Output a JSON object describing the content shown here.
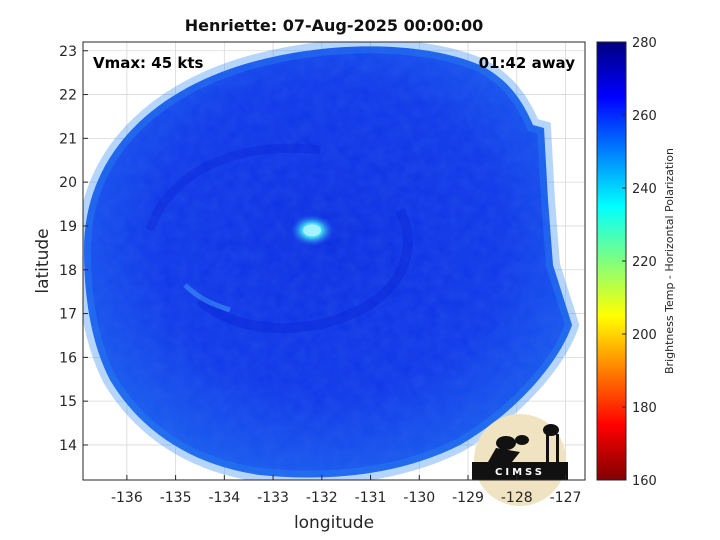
{
  "title": "Henriette: 07-Aug-2025 00:00:00",
  "annotations": {
    "vmax": "Vmax: 45 kts",
    "away": "01:42 away"
  },
  "axes": {
    "xlabel": "longitude",
    "ylabel": "latitude",
    "xlim": [
      -136.9,
      -126.6
    ],
    "ylim": [
      13.2,
      23.2
    ],
    "xticks": [
      -136,
      -135,
      -134,
      -133,
      -132,
      -131,
      -130,
      -129,
      -128,
      -127
    ],
    "yticks": [
      14,
      15,
      16,
      17,
      18,
      19,
      20,
      21,
      22,
      23
    ],
    "xtick_labels": [
      "-136",
      "-135",
      "-134",
      "-133",
      "-132",
      "-131",
      "-130",
      "-129",
      "-128",
      "-127"
    ],
    "ytick_labels": [
      "14",
      "15",
      "16",
      "17",
      "18",
      "19",
      "20",
      "21",
      "22",
      "23"
    ],
    "grid": true
  },
  "colorbar": {
    "label": "Brightness Temp - Horizontal Polarization",
    "range": [
      160,
      280
    ],
    "ticks": [
      160,
      180,
      200,
      220,
      240,
      260,
      280
    ],
    "tick_labels": [
      "160",
      "180",
      "200",
      "220",
      "240",
      "260",
      "280"
    ],
    "colormap": "jet"
  },
  "field": {
    "background_temp": 265,
    "eye_temp": 238,
    "eye_center": [
      -132.2,
      18.9
    ]
  },
  "logo": {
    "text": "CIMSS"
  }
}
